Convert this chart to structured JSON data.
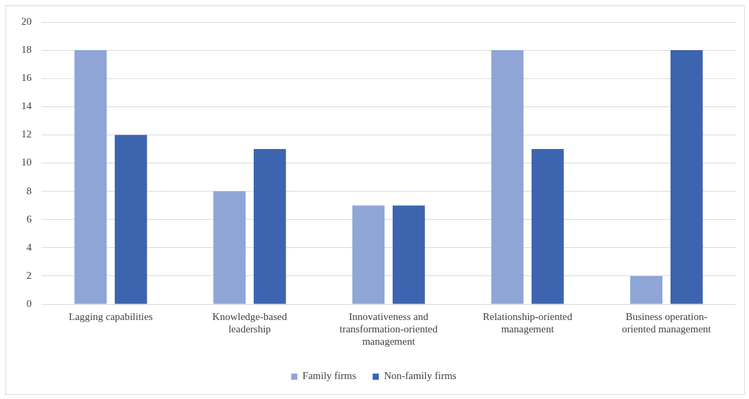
{
  "chart_data": {
    "type": "bar",
    "categories": [
      "Lagging capabilities",
      "Knowledge-based leadership",
      "Innovativeness and transformation-oriented management",
      "Relationship-oriented management",
      "Business operation-oriented management"
    ],
    "series": [
      {
        "name": "Family firms",
        "color": "#8fa5d6",
        "values": [
          18,
          8,
          7,
          18,
          2
        ]
      },
      {
        "name": "Non-family firms",
        "color": "#3d64ae",
        "values": [
          12,
          11,
          7,
          11,
          18
        ]
      }
    ],
    "ylim": [
      0,
      20
    ],
    "yticks": [
      0,
      2,
      4,
      6,
      8,
      10,
      12,
      14,
      16,
      18,
      20
    ],
    "grid": "y",
    "legend": "bottom"
  }
}
